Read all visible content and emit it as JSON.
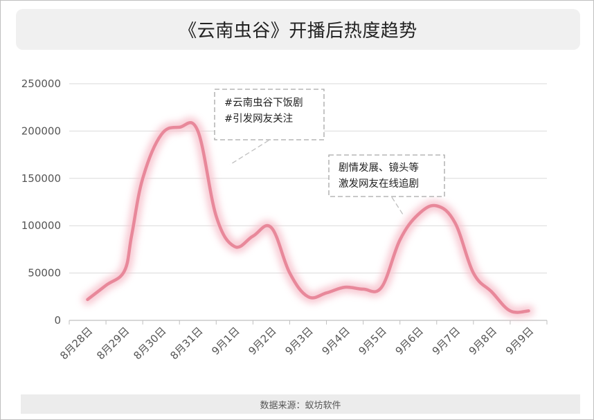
{
  "title": "《云南虫谷》开播后热度趋势",
  "source": "数据来源：蚁坊软件",
  "colors": {
    "line": "#e8889a",
    "glow": "#f7c4cf",
    "grid": "#d9d9d9"
  },
  "annotations": [
    {
      "lines": [
        "#云南虫谷下饭剧",
        "#引发网友关注"
      ]
    },
    {
      "lines": [
        "剧情发展、镜头等",
        "激发网友在线追剧"
      ]
    }
  ],
  "chart_data": {
    "type": "line",
    "title": "《云南虫谷》开播后热度趋势",
    "xlabel": "",
    "ylabel": "",
    "ylim": [
      0,
      250000
    ],
    "yticks": [
      0,
      50000,
      100000,
      150000,
      200000,
      250000
    ],
    "ytick_labels": [
      "0",
      "50000",
      "100000",
      "150000",
      "200000",
      "250000"
    ],
    "categories": [
      "8月28日",
      "8月29日",
      "8月30日",
      "8月31日",
      "9月1日",
      "9月2日",
      "9月3日",
      "9月4日",
      "9月5日",
      "9月6日",
      "9月7日",
      "9月8日",
      "9月9日"
    ],
    "x": [
      0,
      0.5,
      1,
      1.2,
      1.5,
      2,
      2.5,
      3,
      3.5,
      4,
      4.5,
      5,
      5.5,
      6,
      6.5,
      7,
      7.5,
      8,
      8.5,
      9,
      9.5,
      10,
      10.5,
      11,
      11.5,
      12
    ],
    "y": [
      22000,
      37000,
      52000,
      90000,
      150000,
      196000,
      204000,
      200000,
      110000,
      78000,
      89000,
      98000,
      50000,
      25000,
      29000,
      35000,
      33000,
      35000,
      85000,
      112000,
      121000,
      103000,
      50000,
      30000,
      10000,
      10000
    ],
    "grid": true,
    "legend": "none"
  }
}
